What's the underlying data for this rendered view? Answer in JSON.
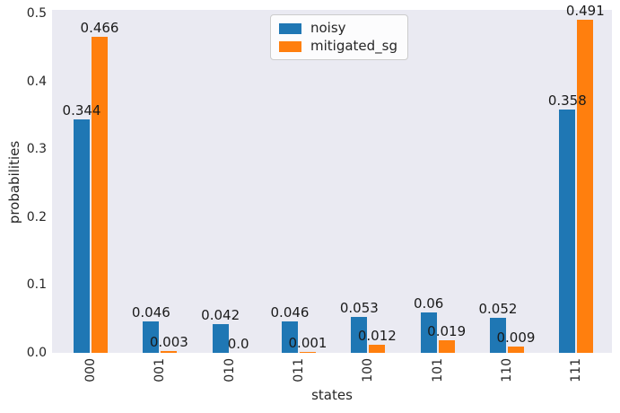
{
  "chart_data": {
    "type": "bar",
    "title": "",
    "xlabel": "states",
    "ylabel": "probabilities",
    "categories": [
      "000",
      "001",
      "010",
      "011",
      "100",
      "101",
      "110",
      "111"
    ],
    "series": [
      {
        "name": "noisy",
        "color": "#1f77b4",
        "values": [
          0.344,
          0.046,
          0.042,
          0.046,
          0.053,
          0.06,
          0.052,
          0.358
        ],
        "labels": [
          "0.344",
          "0.046",
          "0.042",
          "0.046",
          "0.053",
          "0.06",
          "0.052",
          "0.358"
        ]
      },
      {
        "name": "mitigated_sg",
        "color": "#ff7f0e",
        "values": [
          0.466,
          0.003,
          0.0,
          0.001,
          0.012,
          0.019,
          0.009,
          0.491
        ],
        "labels": [
          "0.466",
          "0.003",
          "0.0",
          "0.001",
          "0.012",
          "0.019",
          "0.009",
          "0.491"
        ]
      }
    ],
    "ylim": [
      0,
      0.505
    ],
    "yticks": [
      "0.0",
      "0.1",
      "0.2",
      "0.3",
      "0.4",
      "0.5"
    ],
    "grid": false,
    "legend_position": "upper center",
    "plot_bg_color": "#eaeaf2",
    "figure_bg_color": "#ffffff",
    "text_color": "#262626"
  }
}
